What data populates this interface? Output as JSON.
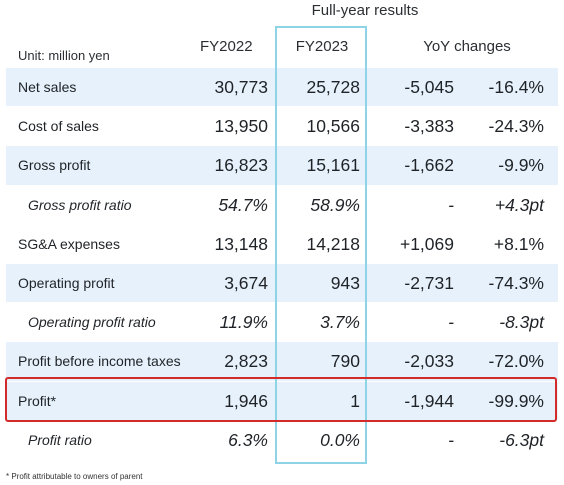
{
  "header": {
    "supertitle": "Full-year results",
    "unit": "Unit: million yen",
    "col_fy2022": "FY2022",
    "col_fy2023": "FY2023",
    "col_yoy": "YoY changes"
  },
  "rows": [
    {
      "label": "Net sales",
      "fy2022": "30,773",
      "fy2023": "25,728",
      "diff": "-5,045",
      "pct": "-16.4%"
    },
    {
      "label": "Cost of sales",
      "fy2022": "13,950",
      "fy2023": "10,566",
      "diff": "-3,383",
      "pct": "-24.3%"
    },
    {
      "label": "Gross profit",
      "fy2022": "16,823",
      "fy2023": "15,161",
      "diff": "-1,662",
      "pct": "-9.9%"
    },
    {
      "label": "Gross profit ratio",
      "fy2022": "54.7%",
      "fy2023": "58.9%",
      "diff": "-",
      "pct": "+4.3pt"
    },
    {
      "label": "SG&A expenses",
      "fy2022": "13,148",
      "fy2023": "14,218",
      "diff": "+1,069",
      "pct": "+8.1%"
    },
    {
      "label": "Operating profit",
      "fy2022": "3,674",
      "fy2023": "943",
      "diff": "-2,731",
      "pct": "-74.3%"
    },
    {
      "label": "Operating profit ratio",
      "fy2022": "11.9%",
      "fy2023": "3.7%",
      "diff": "-",
      "pct": "-8.3pt"
    },
    {
      "label": "Profit before income taxes",
      "fy2022": "2,823",
      "fy2023": "790",
      "diff": "-2,033",
      "pct": "-72.0%"
    },
    {
      "label": "Profit*",
      "fy2022": "1,946",
      "fy2023": "1",
      "diff": "-1,944",
      "pct": "-99.9%"
    },
    {
      "label": "Profit ratio",
      "fy2022": "6.3%",
      "fy2023": "0.0%",
      "diff": "-",
      "pct": "-6.3pt"
    }
  ],
  "footnote": "* Profit attributable to owners of parent",
  "colors": {
    "row_shade": "#e6f1fb",
    "fy2023_box": "#8fd3e6",
    "highlight_box": "#d32a2a"
  }
}
